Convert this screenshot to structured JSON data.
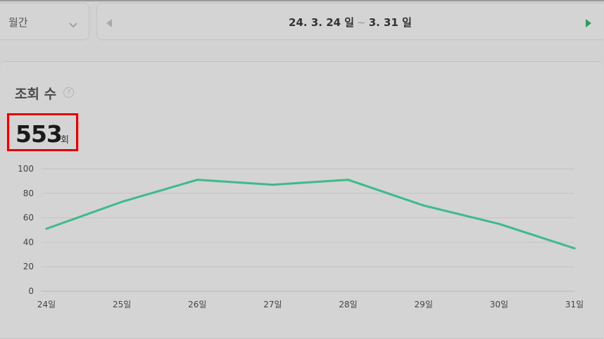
{
  "period_select": {
    "selected": "월간"
  },
  "date_range": {
    "start": "24. 3. 24 일",
    "separator": "~",
    "end": "3. 31 일"
  },
  "card": {
    "title": "조회 수",
    "help_icon": "question-circle-icon",
    "total_value": "553",
    "total_unit": "회"
  },
  "colors": {
    "line": "#3dbb8a",
    "next_arrow": "#2e9e5e",
    "highlight_border": "#e00000"
  },
  "chart_data": {
    "type": "line",
    "categories": [
      "24일",
      "25일",
      "26일",
      "27일",
      "28일",
      "29일",
      "30일",
      "31일"
    ],
    "series": [
      {
        "values": [
          51,
          73,
          91,
          87,
          91,
          70,
          55,
          35
        ]
      }
    ],
    "ylim": [
      0,
      100
    ],
    "yticks": [
      0,
      20,
      40,
      60,
      80,
      100
    ],
    "grid": true
  }
}
